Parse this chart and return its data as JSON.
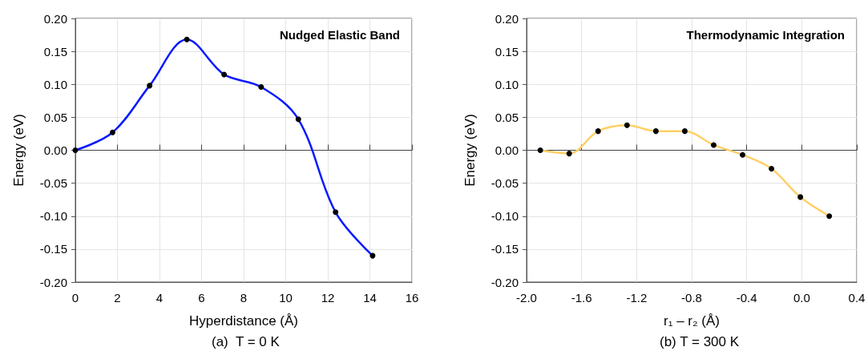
{
  "chart_data": [
    {
      "type": "line",
      "title": "Nudged Elastic Band",
      "xlabel": "Hyperdistance (Å)",
      "ylabel": "Energy (eV)",
      "annotations": [
        "(a)  T = 0 K"
      ],
      "x": [
        0,
        1.77,
        3.53,
        5.3,
        7.07,
        8.83,
        10.6,
        12.37,
        14.13
      ],
      "series": [
        {
          "color": "#0a1aff",
          "values": [
            0,
            0.027,
            0.098,
            0.168,
            0.115,
            0.096,
            0.047,
            -0.094,
            -0.16
          ]
        }
      ],
      "xlim": [
        0,
        16
      ],
      "xticks": [
        0,
        2,
        4,
        6,
        8,
        10,
        12,
        14,
        16
      ],
      "ylim": [
        -0.2,
        0.2
      ],
      "yticks": [
        {
          "value": -0.2,
          "label": "-0.20"
        },
        {
          "value": -0.15,
          "label": "-0.15"
        },
        {
          "value": -0.1,
          "label": "-0.10"
        },
        {
          "value": -0.05,
          "label": "-0.05"
        },
        {
          "value": 0,
          "label": "0.00"
        },
        {
          "value": 0.05,
          "label": "0.05"
        },
        {
          "value": 0.1,
          "label": "0.10"
        },
        {
          "value": 0.15,
          "label": "0.15"
        },
        {
          "value": 0.2,
          "label": "0.20"
        }
      ],
      "grid": true,
      "marker": "circle",
      "line_style": "solid"
    },
    {
      "type": "line",
      "title": "Thermodynamic Integration",
      "xlabel": "r₁ – r₂ (Å)",
      "ylabel": "Energy (eV)",
      "annotations": [
        "(b) T = 300 K"
      ],
      "x": [
        -1.9,
        -1.69,
        -1.48,
        -1.27,
        -1.06,
        -0.85,
        -0.64,
        -0.43,
        -0.22,
        -0.01,
        0.2
      ],
      "series": [
        {
          "color": "#ffd066",
          "values": [
            0,
            -0.005,
            0.029,
            0.038,
            0.029,
            0.029,
            0.008,
            -0.007,
            -0.028,
            -0.071,
            -0.1
          ]
        }
      ],
      "xlim": [
        -2.0,
        0.4
      ],
      "xticks": [
        {
          "value": -2.0,
          "label": "-2.0"
        },
        {
          "value": -1.6,
          "label": "-1.6"
        },
        {
          "value": -1.2,
          "label": "-1.2"
        },
        {
          "value": -0.8,
          "label": "-0.8"
        },
        {
          "value": -0.4,
          "label": "-0.4"
        },
        {
          "value": 0,
          "label": "0.0"
        },
        {
          "value": 0.4,
          "label": "0.4"
        }
      ],
      "ylim": [
        -0.2,
        0.2
      ],
      "yticks": [
        {
          "value": -0.2,
          "label": "-0.20"
        },
        {
          "value": -0.15,
          "label": "-0.15"
        },
        {
          "value": -0.1,
          "label": "-0.10"
        },
        {
          "value": -0.05,
          "label": "-0.05"
        },
        {
          "value": 0,
          "label": "0.00"
        },
        {
          "value": 0.05,
          "label": "0.05"
        },
        {
          "value": 0.1,
          "label": "0.10"
        },
        {
          "value": 0.15,
          "label": "0.15"
        },
        {
          "value": 0.2,
          "label": "0.20"
        }
      ],
      "grid": true,
      "marker": "circle",
      "line_style": "solid"
    }
  ]
}
